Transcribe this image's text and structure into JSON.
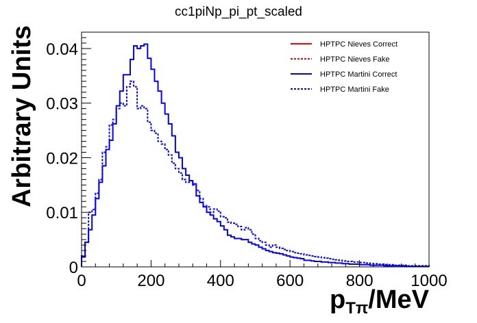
{
  "chart_data": {
    "type": "line",
    "title": "cc1piNp_pi_pt_scaled",
    "xlabel": "p_{Tπ}/MeV",
    "xlabel_parts": {
      "main": "p",
      "sub": "Tπ",
      "unit": "/MeV"
    },
    "ylabel": "Arbitrary Units",
    "xlim": [
      0,
      1000
    ],
    "ylim": [
      0,
      0.043
    ],
    "x_ticks": [
      0,
      200,
      400,
      600,
      800,
      1000
    ],
    "x_tick_labels": [
      "0",
      "200",
      "400",
      "600",
      "800",
      "1000"
    ],
    "y_ticks": [
      0,
      0.01,
      0.02,
      0.03,
      0.04
    ],
    "y_tick_labels": [
      "0",
      "0.01",
      "0.02",
      "0.03",
      "0.04"
    ],
    "grid": false,
    "legend_position": "top-right",
    "bin_width": 10,
    "series": [
      {
        "name": "HPTPC Nieves Correct",
        "color": "#ff0000",
        "style": "solid",
        "values": []
      },
      {
        "name": "HPTPC Nieves Fake",
        "color": "#ff0000",
        "style": "dashed",
        "values": []
      },
      {
        "name": "HPTPC Martini Correct",
        "color": "#0000ff",
        "style": "solid",
        "values": [
          0.0018,
          0.0045,
          0.0068,
          0.0095,
          0.0125,
          0.0155,
          0.0185,
          0.0215,
          0.0232,
          0.0262,
          0.0295,
          0.0322,
          0.0352,
          0.0352,
          0.038,
          0.0405,
          0.04,
          0.0405,
          0.0408,
          0.0382,
          0.0362,
          0.034,
          0.0322,
          0.03,
          0.028,
          0.0262,
          0.024,
          0.021,
          0.02,
          0.018,
          0.0168,
          0.0158,
          0.0152,
          0.013,
          0.0118,
          0.011,
          0.01,
          0.0095,
          0.0088,
          0.0083,
          0.0075,
          0.0068,
          0.0058,
          0.0055,
          0.0052,
          0.0052,
          0.005,
          0.005,
          0.0045,
          0.0042,
          0.004,
          0.0036,
          0.0033,
          0.003,
          0.0028,
          0.0026,
          0.0025,
          0.0024,
          0.0022,
          0.002,
          0.0018,
          0.0017,
          0.0016,
          0.0015,
          0.0012,
          0.0012,
          0.0011,
          0.001,
          0.001,
          0.0009,
          0.0009,
          0.0008,
          0.0008,
          0.0007,
          0.0007,
          0.0006,
          0.0006,
          0.0005,
          0.0005,
          0.0005,
          0.0004,
          0.0004,
          0.0004,
          0.0003,
          0.0003,
          0.0003,
          0.0003,
          0.0002,
          0.0002,
          0.0002,
          0.0002,
          0.0002,
          0.0002,
          0.0001,
          0.0001,
          0.0001,
          0.0001,
          0.0001,
          0.0001,
          0.0001
        ]
      },
      {
        "name": "HPTPC Martini Fake",
        "color": "#0000ff",
        "style": "dashed",
        "values": [
          0.002,
          0.0045,
          0.01,
          0.0105,
          0.0135,
          0.016,
          0.021,
          0.022,
          0.026,
          0.027,
          0.029,
          0.03,
          0.0295,
          0.033,
          0.034,
          0.033,
          0.029,
          0.0295,
          0.029,
          0.0265,
          0.025,
          0.0245,
          0.023,
          0.0225,
          0.0215,
          0.0205,
          0.019,
          0.018,
          0.0172,
          0.016,
          0.0155,
          0.0158,
          0.015,
          0.014,
          0.0125,
          0.0112,
          0.011,
          0.01,
          0.0106,
          0.0102,
          0.0092,
          0.009,
          0.0082,
          0.008,
          0.0078,
          0.0074,
          0.0068,
          0.0072,
          0.0068,
          0.006,
          0.0052,
          0.0048,
          0.0045,
          0.004,
          0.0036,
          0.004,
          0.0036,
          0.0034,
          0.0032,
          0.003,
          0.0028,
          0.0026,
          0.0025,
          0.0024,
          0.0022,
          0.0021,
          0.002,
          0.0019,
          0.0018,
          0.0017,
          0.0016,
          0.0015,
          0.0014,
          0.0013,
          0.0012,
          0.0011,
          0.001,
          0.001,
          0.0009,
          0.0009,
          0.0008,
          0.0008,
          0.0007,
          0.0006,
          0.0006,
          0.0005,
          0.0005,
          0.0004,
          0.0004,
          0.0004,
          0.0003,
          0.0003,
          0.0003,
          0.0003,
          0.0002,
          0.0002,
          0.0002,
          0.0002,
          0.0002,
          0.0002
        ]
      }
    ]
  }
}
